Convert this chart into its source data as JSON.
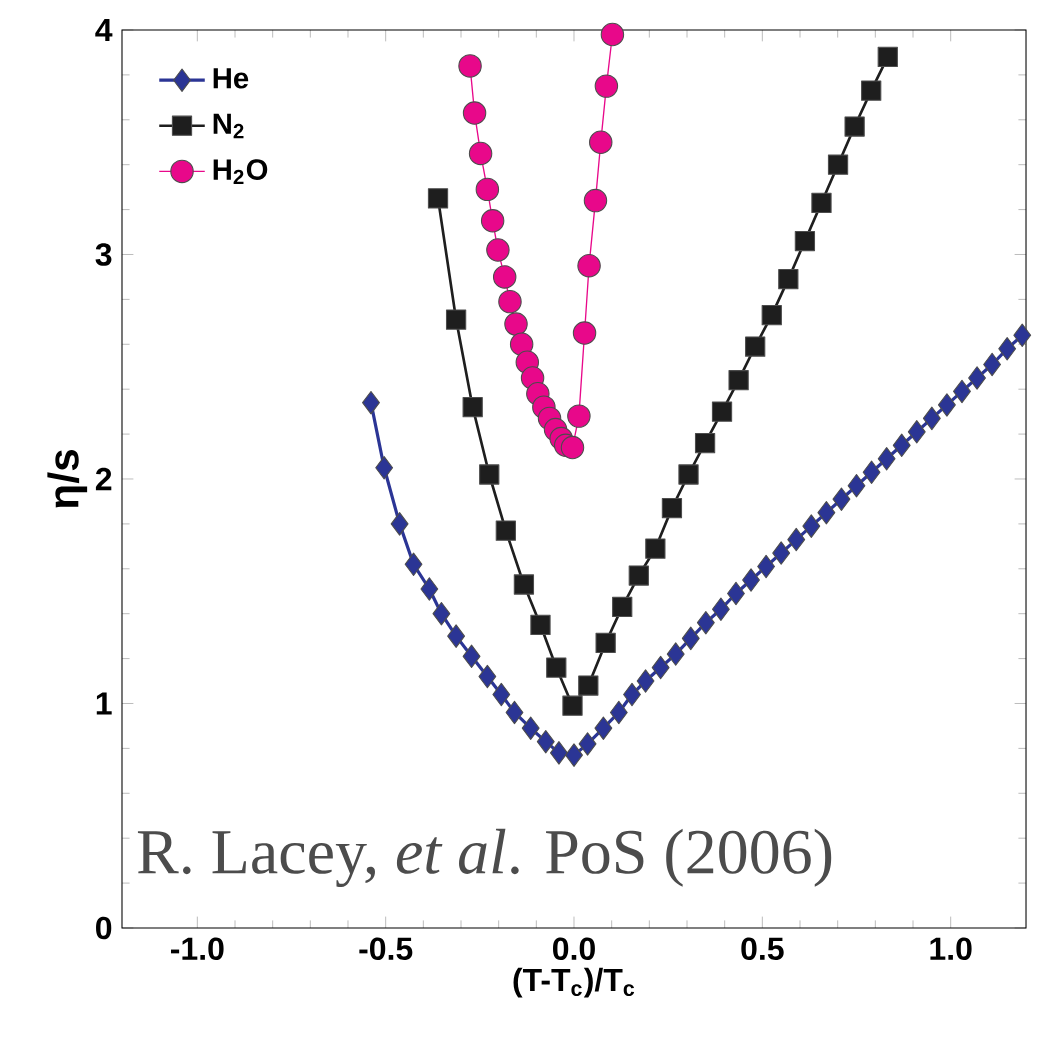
{
  "chart_data": {
    "type": "line",
    "xlabel": "(T-T$_{c}$)/T$_{c}$",
    "ylabel": "η/s",
    "xlim": [
      -1.2,
      1.2
    ],
    "ylim": [
      0,
      4
    ],
    "xticks": [
      {
        "value": -1,
        "label": "-1.0"
      },
      {
        "value": -0.5,
        "label": "-0.5"
      },
      {
        "value": 0,
        "label": "0.0"
      },
      {
        "value": 0.5,
        "label": "0.5"
      },
      {
        "value": 1,
        "label": "1.0"
      }
    ],
    "yticks": [
      0,
      1,
      2,
      3,
      4
    ],
    "legend": "top left",
    "grid": false,
    "line_style": "solid",
    "annotations": [
      "R. Lacey, *et al*. PoS (2006)"
    ],
    "series": [
      {
        "name": "He",
        "color": "#2b3595",
        "marker": "diamond",
        "x": [
          -0.539,
          -0.504,
          -0.463,
          -0.426,
          -0.384,
          -0.352,
          -0.313,
          -0.272,
          -0.23,
          -0.193,
          -0.158,
          -0.115,
          -0.075,
          -0.04,
          0.0,
          0.036,
          0.078,
          0.119,
          0.154,
          0.19,
          0.23,
          0.27,
          0.31,
          0.35,
          0.39,
          0.43,
          0.47,
          0.51,
          0.55,
          0.59,
          0.63,
          0.67,
          0.71,
          0.75,
          0.79,
          0.83,
          0.87,
          0.91,
          0.95,
          0.99,
          1.03,
          1.07,
          1.11,
          1.15,
          1.19
        ],
        "values": [
          2.34,
          2.05,
          1.8,
          1.62,
          1.51,
          1.4,
          1.3,
          1.21,
          1.12,
          1.04,
          0.96,
          0.89,
          0.83,
          0.78,
          0.77,
          0.82,
          0.89,
          0.96,
          1.04,
          1.1,
          1.16,
          1.22,
          1.29,
          1.36,
          1.42,
          1.49,
          1.55,
          1.61,
          1.67,
          1.73,
          1.79,
          1.85,
          1.91,
          1.97,
          2.03,
          2.09,
          2.15,
          2.21,
          2.27,
          2.33,
          2.39,
          2.45,
          2.51,
          2.58,
          2.64
        ]
      },
      {
        "name": "N$_{2}$",
        "color": "#1e1e1e",
        "marker": "square",
        "x": [
          -0.361,
          -0.313,
          -0.269,
          -0.225,
          -0.181,
          -0.133,
          -0.089,
          -0.047,
          -0.004,
          0.038,
          0.084,
          0.128,
          0.172,
          0.216,
          0.26,
          0.304,
          0.348,
          0.393,
          0.437,
          0.481,
          0.525,
          0.569,
          0.613,
          0.657,
          0.701,
          0.745,
          0.789,
          0.833
        ],
        "values": [
          3.25,
          2.71,
          2.32,
          2.02,
          1.77,
          1.53,
          1.35,
          1.16,
          0.99,
          1.08,
          1.27,
          1.43,
          1.57,
          1.69,
          1.87,
          2.02,
          2.16,
          2.3,
          2.44,
          2.59,
          2.73,
          2.89,
          3.06,
          3.23,
          3.4,
          3.57,
          3.73,
          3.88
        ]
      },
      {
        "name": "H$_{2}$O",
        "color": "#e8088a",
        "marker": "circle",
        "x": [
          -0.276,
          -0.264,
          -0.248,
          -0.23,
          -0.216,
          -0.202,
          -0.184,
          -0.17,
          -0.154,
          -0.139,
          -0.124,
          -0.11,
          -0.096,
          -0.08,
          -0.065,
          -0.049,
          -0.034,
          -0.022,
          -0.004,
          0.013,
          0.028,
          0.04,
          0.057,
          0.071,
          0.086,
          0.102
        ],
        "values": [
          3.84,
          3.63,
          3.45,
          3.29,
          3.15,
          3.02,
          2.9,
          2.79,
          2.69,
          2.6,
          2.52,
          2.45,
          2.38,
          2.32,
          2.27,
          2.22,
          2.18,
          2.15,
          2.14,
          2.28,
          2.65,
          2.95,
          3.24,
          3.5,
          3.75,
          3.98
        ]
      }
    ]
  }
}
